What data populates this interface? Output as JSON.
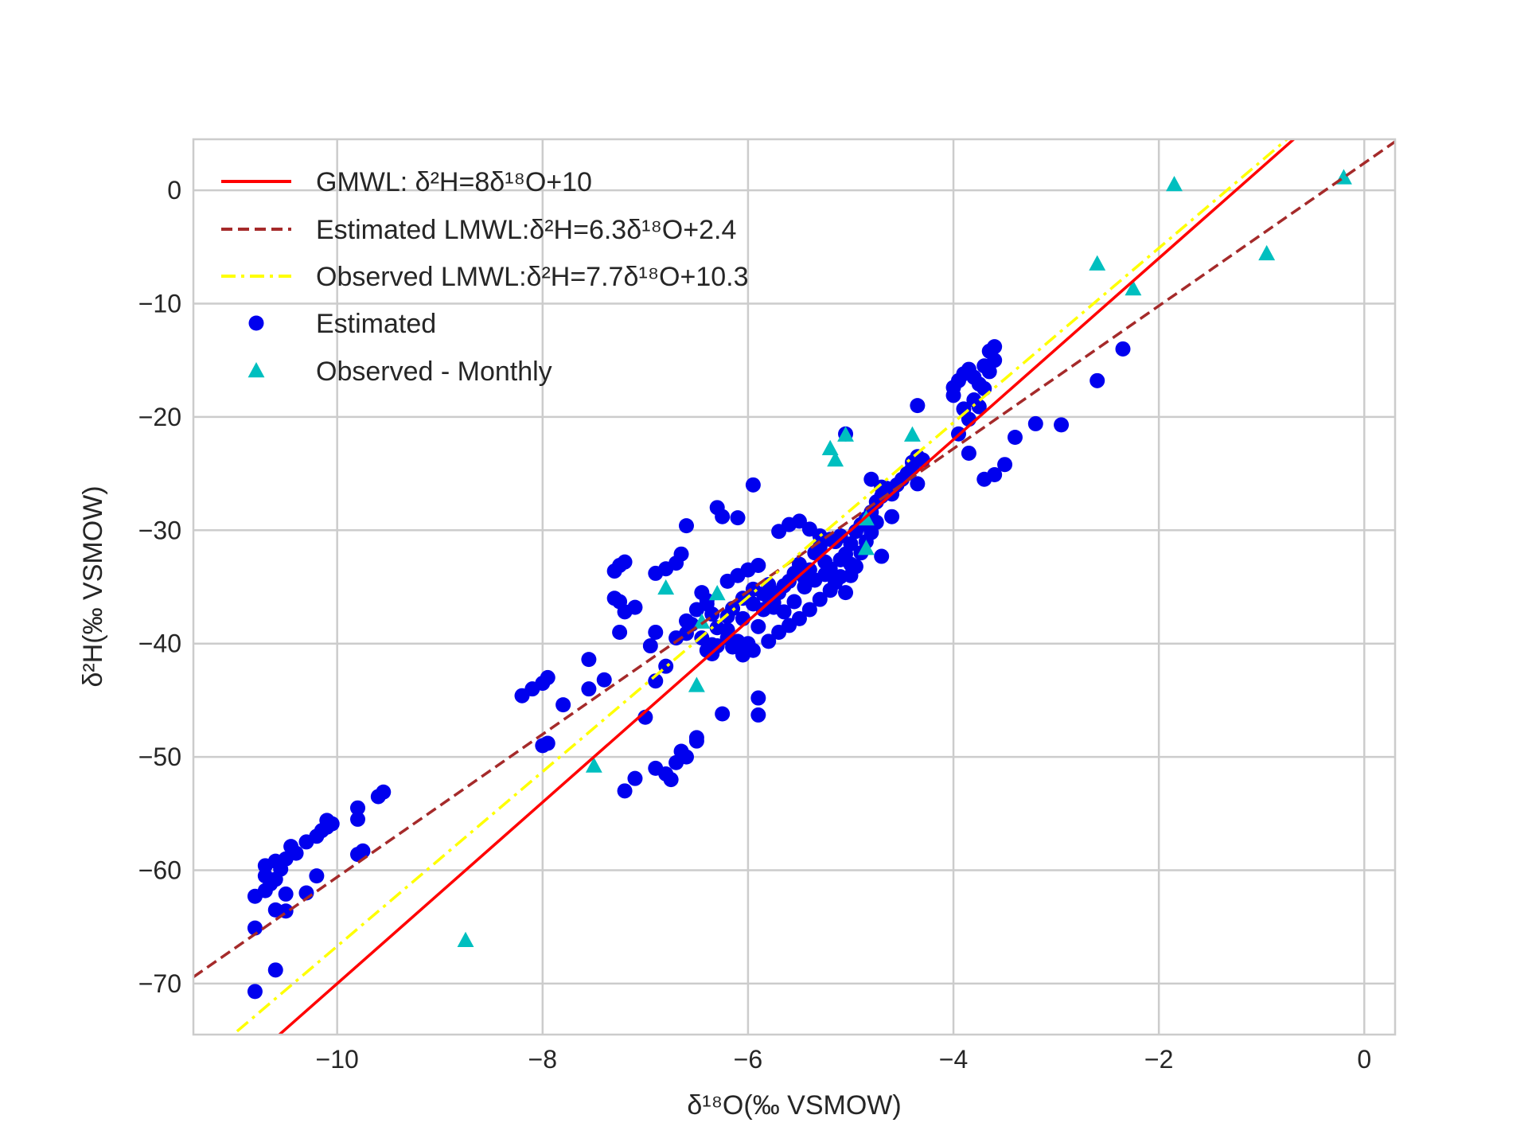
{
  "chart_data": {
    "type": "scatter",
    "title": "",
    "xlabel": "δ¹⁸O(‰ VSMOW)",
    "ylabel": "δ²H(‰ VSMOW)",
    "xlim": [
      -11.4,
      0.3
    ],
    "ylim": [
      -74.5,
      4.5
    ],
    "xticks": [
      -10,
      -8,
      -6,
      -4,
      -2,
      0
    ],
    "yticks": [
      0,
      -10,
      -20,
      -30,
      -40,
      -50,
      -60,
      -70
    ],
    "xtick_labels": [
      "−10",
      "−8",
      "−6",
      "−4",
      "−2",
      "0"
    ],
    "ytick_labels": [
      "0",
      "−10",
      "−20",
      "−30",
      "−40",
      "−50",
      "−60",
      "−70"
    ],
    "grid": true,
    "legend_position": "top-left",
    "lines": [
      {
        "name": "GMWL: δ²H=8δ¹⁸O+10",
        "slope": 8,
        "intercept": 10,
        "color": "#ff0000",
        "style": "solid"
      },
      {
        "name": "Estimated LMWL:δ²H=6.3δ¹⁸O+2.4",
        "slope": 6.3,
        "intercept": 2.4,
        "color": "#a52a2a",
        "style": "dashed"
      },
      {
        "name": "Observed LMWL:δ²H=7.7δ¹⁸O+10.3",
        "slope": 7.7,
        "intercept": 10.3,
        "color": "#ffff00",
        "style": "dashdot"
      }
    ],
    "series": [
      {
        "name": "Estimated",
        "marker": "circle",
        "color": "#0000ee",
        "points": [
          [
            -10.8,
            -70.7
          ],
          [
            -10.6,
            -68.8
          ],
          [
            -10.8,
            -65.1
          ],
          [
            -10.6,
            -63.5
          ],
          [
            -10.5,
            -63.6
          ],
          [
            -10.5,
            -62.1
          ],
          [
            -10.3,
            -62.0
          ],
          [
            -10.2,
            -60.5
          ],
          [
            -10.8,
            -62.3
          ],
          [
            -10.7,
            -61.8
          ],
          [
            -10.65,
            -61.2
          ],
          [
            -10.7,
            -60.5
          ],
          [
            -10.6,
            -60.8
          ],
          [
            -10.55,
            -59.9
          ],
          [
            -10.7,
            -59.6
          ],
          [
            -10.6,
            -59.2
          ],
          [
            -10.5,
            -59.0
          ],
          [
            -10.4,
            -58.5
          ],
          [
            -10.45,
            -57.9
          ],
          [
            -10.3,
            -57.5
          ],
          [
            -10.2,
            -57.0
          ],
          [
            -10.15,
            -56.5
          ],
          [
            -10.1,
            -56.2
          ],
          [
            -10.05,
            -55.9
          ],
          [
            -10.1,
            -55.6
          ],
          [
            -9.8,
            -55.5
          ],
          [
            -9.8,
            -54.5
          ],
          [
            -9.6,
            -53.5
          ],
          [
            -9.55,
            -53.1
          ],
          [
            -9.75,
            -58.3
          ],
          [
            -9.8,
            -58.6
          ],
          [
            -8.2,
            -44.6
          ],
          [
            -8.1,
            -44.0
          ],
          [
            -8.0,
            -43.5
          ],
          [
            -7.95,
            -43.0
          ],
          [
            -7.8,
            -45.4
          ],
          [
            -7.55,
            -44.0
          ],
          [
            -7.55,
            -41.4
          ],
          [
            -7.4,
            -43.2
          ],
          [
            -8.0,
            -49.0
          ],
          [
            -7.95,
            -48.8
          ],
          [
            -7.3,
            -36.0
          ],
          [
            -7.25,
            -36.3
          ],
          [
            -7.2,
            -37.2
          ],
          [
            -7.1,
            -36.8
          ],
          [
            -7.25,
            -39.0
          ],
          [
            -7.3,
            -33.6
          ],
          [
            -7.25,
            -33.1
          ],
          [
            -7.2,
            -32.8
          ],
          [
            -7.2,
            -53.0
          ],
          [
            -7.1,
            -51.9
          ],
          [
            -7.0,
            -46.5
          ],
          [
            -6.9,
            -51.0
          ],
          [
            -6.8,
            -51.5
          ],
          [
            -6.75,
            -52.0
          ],
          [
            -6.7,
            -50.5
          ],
          [
            -6.6,
            -50.0
          ],
          [
            -6.65,
            -49.5
          ],
          [
            -6.5,
            -48.3
          ],
          [
            -6.5,
            -48.6
          ],
          [
            -6.95,
            -40.2
          ],
          [
            -6.9,
            -43.3
          ],
          [
            -6.8,
            -42.0
          ],
          [
            -6.9,
            -39.0
          ],
          [
            -6.7,
            -39.5
          ],
          [
            -6.6,
            -38.0
          ],
          [
            -6.5,
            -37.0
          ],
          [
            -6.4,
            -36.5
          ],
          [
            -6.9,
            -33.8
          ],
          [
            -6.8,
            -33.4
          ],
          [
            -6.7,
            -32.9
          ],
          [
            -6.65,
            -32.1
          ],
          [
            -6.6,
            -29.6
          ],
          [
            -6.3,
            -28.0
          ],
          [
            -6.25,
            -28.8
          ],
          [
            -6.1,
            -28.9
          ],
          [
            -5.95,
            -26.0
          ],
          [
            -6.35,
            -40.9
          ],
          [
            -6.3,
            -40.2
          ],
          [
            -6.2,
            -39.5
          ],
          [
            -6.2,
            -38.8
          ],
          [
            -6.1,
            -39.8
          ],
          [
            -6.0,
            -40.0
          ],
          [
            -6.05,
            -37.8
          ],
          [
            -5.95,
            -36.5
          ],
          [
            -5.9,
            -38.5
          ],
          [
            -5.85,
            -37.0
          ],
          [
            -5.8,
            -35.9
          ],
          [
            -5.75,
            -36.8
          ],
          [
            -5.7,
            -35.5
          ],
          [
            -5.65,
            -34.9
          ],
          [
            -5.6,
            -34.5
          ],
          [
            -5.55,
            -33.8
          ],
          [
            -5.5,
            -33.0
          ],
          [
            -5.45,
            -34.2
          ],
          [
            -5.4,
            -33.5
          ],
          [
            -5.35,
            -32.0
          ],
          [
            -5.3,
            -31.5
          ],
          [
            -5.25,
            -32.8
          ],
          [
            -5.2,
            -33.4
          ],
          [
            -5.15,
            -31.0
          ],
          [
            -5.1,
            -30.5
          ],
          [
            -5.05,
            -32.1
          ],
          [
            -5.0,
            -31.2
          ],
          [
            -4.95,
            -30.1
          ],
          [
            -4.9,
            -29.5
          ],
          [
            -4.85,
            -29.0
          ],
          [
            -4.8,
            -28.4
          ],
          [
            -4.75,
            -27.5
          ],
          [
            -4.7,
            -27.0
          ],
          [
            -4.65,
            -26.3
          ],
          [
            -4.6,
            -26.8
          ],
          [
            -4.55,
            -26.0
          ],
          [
            -4.5,
            -25.5
          ],
          [
            -4.45,
            -25.0
          ],
          [
            -4.4,
            -24.5
          ],
          [
            -4.35,
            -23.5
          ],
          [
            -4.3,
            -23.8
          ],
          [
            -4.35,
            -25.9
          ],
          [
            -4.4,
            -24.0
          ],
          [
            -4.6,
            -28.8
          ],
          [
            -4.7,
            -32.3
          ],
          [
            -4.8,
            -25.5
          ],
          [
            -4.7,
            -26.2
          ],
          [
            -6.2,
            -34.5
          ],
          [
            -6.1,
            -34.0
          ],
          [
            -6.0,
            -33.5
          ],
          [
            -5.9,
            -33.1
          ],
          [
            -5.8,
            -34.8
          ],
          [
            -5.7,
            -30.1
          ],
          [
            -5.6,
            -29.5
          ],
          [
            -5.5,
            -29.2
          ],
          [
            -5.4,
            -29.9
          ],
          [
            -5.3,
            -30.5
          ],
          [
            -5.2,
            -30.8
          ],
          [
            -6.45,
            -35.5
          ],
          [
            -6.4,
            -36.2
          ],
          [
            -6.35,
            -37.4
          ],
          [
            -6.55,
            -38.3
          ],
          [
            -6.6,
            -39.1
          ],
          [
            -6.45,
            -39.5
          ],
          [
            -6.35,
            -40.1
          ],
          [
            -6.3,
            -38.6
          ],
          [
            -6.2,
            -37.6
          ],
          [
            -6.15,
            -36.9
          ],
          [
            -6.05,
            -36.0
          ],
          [
            -5.95,
            -35.2
          ],
          [
            -5.85,
            -35.6
          ],
          [
            -5.75,
            -36.4
          ],
          [
            -5.65,
            -37.2
          ],
          [
            -5.55,
            -36.3
          ],
          [
            -5.45,
            -35.0
          ],
          [
            -5.35,
            -34.4
          ],
          [
            -5.25,
            -33.9
          ],
          [
            -5.15,
            -34.6
          ],
          [
            -5.05,
            -35.5
          ],
          [
            -5.0,
            -34.0
          ],
          [
            -4.95,
            -33.2
          ],
          [
            -5.1,
            -32.6
          ],
          [
            -6.25,
            -46.2
          ],
          [
            -5.9,
            -46.3
          ],
          [
            -5.9,
            -44.8
          ],
          [
            -6.4,
            -40.6
          ],
          [
            -6.15,
            -40.3
          ],
          [
            -6.05,
            -41.0
          ],
          [
            -5.95,
            -40.6
          ],
          [
            -5.8,
            -39.8
          ],
          [
            -5.7,
            -39.0
          ],
          [
            -5.6,
            -38.4
          ],
          [
            -5.5,
            -37.8
          ],
          [
            -5.4,
            -37.0
          ],
          [
            -5.3,
            -36.1
          ],
          [
            -5.2,
            -35.3
          ],
          [
            -5.1,
            -34.1
          ],
          [
            -5.0,
            -33.0
          ],
          [
            -4.9,
            -32.0
          ],
          [
            -4.85,
            -31.0
          ],
          [
            -4.8,
            -30.2
          ],
          [
            -4.75,
            -29.3
          ],
          [
            -5.05,
            -21.5
          ],
          [
            -4.35,
            -19.0
          ],
          [
            -4.0,
            -18.1
          ],
          [
            -4.0,
            -17.4
          ],
          [
            -3.95,
            -16.8
          ],
          [
            -3.9,
            -16.2
          ],
          [
            -3.85,
            -15.8
          ],
          [
            -3.8,
            -16.5
          ],
          [
            -3.75,
            -17.1
          ],
          [
            -3.7,
            -15.5
          ],
          [
            -3.65,
            -14.2
          ],
          [
            -3.6,
            -13.8
          ],
          [
            -3.65,
            -16.0
          ],
          [
            -3.7,
            -17.5
          ],
          [
            -3.8,
            -18.5
          ],
          [
            -3.9,
            -19.3
          ],
          [
            -3.85,
            -20.2
          ],
          [
            -3.95,
            -21.5
          ],
          [
            -3.85,
            -23.2
          ],
          [
            -3.7,
            -25.5
          ],
          [
            -3.6,
            -25.1
          ],
          [
            -3.5,
            -24.2
          ],
          [
            -3.4,
            -21.8
          ],
          [
            -3.2,
            -20.6
          ],
          [
            -2.95,
            -20.7
          ],
          [
            -2.6,
            -16.8
          ],
          [
            -2.35,
            -14.0
          ],
          [
            -3.75,
            -19.1
          ],
          [
            -3.6,
            -15.0
          ]
        ]
      },
      {
        "name": "Observed - Monthly",
        "marker": "triangle",
        "color": "#00bfbf",
        "points": [
          [
            -8.75,
            -66.2
          ],
          [
            -7.5,
            -50.8
          ],
          [
            -6.8,
            -35.1
          ],
          [
            -6.5,
            -43.7
          ],
          [
            -6.45,
            -38.1
          ],
          [
            -6.3,
            -35.6
          ],
          [
            -5.2,
            -22.8
          ],
          [
            -5.15,
            -23.8
          ],
          [
            -5.05,
            -21.6
          ],
          [
            -4.85,
            -29.0
          ],
          [
            -4.85,
            -31.6
          ],
          [
            -4.4,
            -21.6
          ],
          [
            -2.6,
            -6.5
          ],
          [
            -2.25,
            -8.7
          ],
          [
            -1.85,
            0.5
          ],
          [
            -0.95,
            -5.6
          ],
          [
            -0.2,
            1.1
          ]
        ]
      }
    ]
  }
}
